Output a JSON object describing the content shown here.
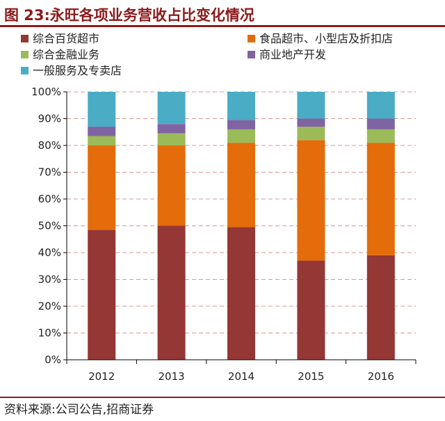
{
  "header": {
    "title": "图 23:永旺各项业务营收占比变化情况"
  },
  "footer": {
    "source": "资料来源:公司公告,招商证券"
  },
  "chart_data": {
    "type": "bar",
    "stacked": true,
    "categories": [
      "2012",
      "2013",
      "2014",
      "2015",
      "2016"
    ],
    "ylim": [
      0,
      100
    ],
    "yticks": [
      "0%",
      "10%",
      "20%",
      "30%",
      "40%",
      "50%",
      "60%",
      "70%",
      "80%",
      "90%",
      "100%"
    ],
    "grid": true,
    "legend_position": "top",
    "series": [
      {
        "name": "综合百货超市",
        "color": "#953735",
        "values": [
          48.5,
          50,
          49.5,
          37,
          39
        ]
      },
      {
        "name": "食品超市、小型店及折扣店",
        "color": "#e46c0a",
        "values": [
          31.5,
          30,
          31.5,
          45,
          42
        ]
      },
      {
        "name": "综合金融业务",
        "color": "#9bbb59",
        "values": [
          3.5,
          4.5,
          5,
          5,
          5
        ]
      },
      {
        "name": "商业地产开发",
        "color": "#8064a2",
        "values": [
          3.5,
          3.5,
          3.5,
          3,
          4
        ]
      },
      {
        "name": "一般服务及专卖店",
        "color": "#4bacc6",
        "values": [
          13,
          12,
          10.5,
          10,
          10
        ]
      }
    ]
  }
}
